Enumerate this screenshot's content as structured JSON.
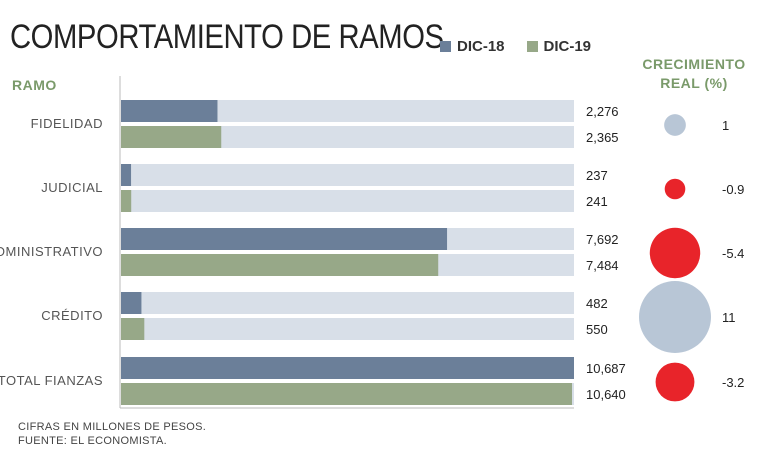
{
  "title": "COMPORTAMIENTO DE RAMOS",
  "legend": [
    {
      "label": "DIC-18",
      "color": "#6b7f99"
    },
    {
      "label": "DIC-19",
      "color": "#97a888"
    }
  ],
  "ramo_header": "RAMO",
  "growth_header": {
    "line1": "CRECIMIENTO",
    "line2": "REAL (%)"
  },
  "footer": {
    "line1": "CIFRAS EN MILLONES DE PESOS.",
    "line2": "FUENTE: EL ECONOMISTA."
  },
  "colors": {
    "dic18": "#6b7f99",
    "dic19": "#97a888",
    "track": "#d8dfe8",
    "positive": "#b8c6d6",
    "negative": "#e8242a"
  },
  "chart_data": {
    "type": "bar",
    "orientation": "horizontal",
    "categories": [
      "FIDELIDAD",
      "JUDICIAL",
      "ADMINISTRATIVO",
      "CRÉDITO",
      "TOTAL FIANZAS"
    ],
    "series": [
      {
        "name": "DIC-18",
        "values": [
          2276,
          237,
          7692,
          482,
          10687
        ],
        "labels": [
          "2,276",
          "237",
          "7,692",
          "482",
          "10,687"
        ]
      },
      {
        "name": "DIC-19",
        "values": [
          2365,
          241,
          7484,
          550,
          10640
        ],
        "labels": [
          "2,365",
          "241",
          "7,484",
          "550",
          "10,640"
        ]
      }
    ],
    "xlim": [
      0,
      10687
    ],
    "growth": {
      "values": [
        1,
        -0.9,
        -5.4,
        11,
        -3.2
      ],
      "labels": [
        "1",
        "-0.9",
        "-5.4",
        "11",
        "-3.2"
      ]
    }
  }
}
